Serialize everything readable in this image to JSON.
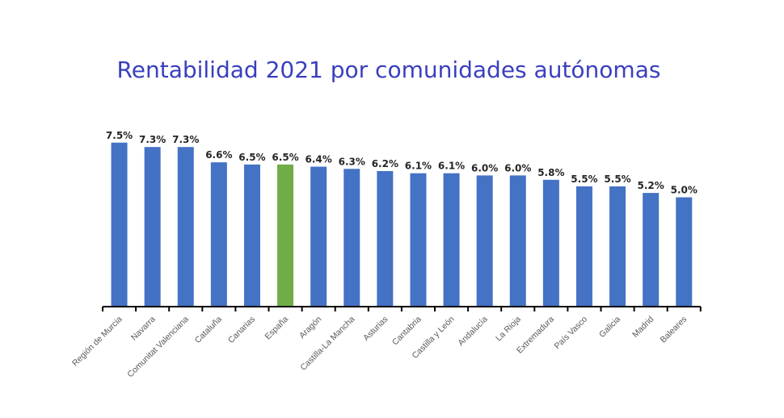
{
  "chart_data": {
    "type": "bar",
    "title": "Rentabilidad 2021 por comunidades autónomas",
    "xlabel": "",
    "ylabel": "",
    "ylim": [
      0,
      7.5
    ],
    "grid": false,
    "categories": [
      "Región de Murcia",
      "Navarra",
      "Comunitat Valenciana",
      "Cataluña",
      "Canarias",
      "España",
      "Aragón",
      "Castilla-La Mancha",
      "Asturias",
      "Cantabria",
      "Castilla y León",
      "Andalucía",
      "La Rioja",
      "Extremadura",
      "País Vasco",
      "Galicia",
      "Madrid",
      "Baleares"
    ],
    "values": [
      7.5,
      7.3,
      7.3,
      6.6,
      6.5,
      6.5,
      6.4,
      6.3,
      6.2,
      6.1,
      6.1,
      6.0,
      6.0,
      5.8,
      5.5,
      5.5,
      5.2,
      5.0
    ],
    "data_labels": [
      "7.5%",
      "7.3%",
      "7.3%",
      "6.6%",
      "6.5%",
      "6.5%",
      "6.4%",
      "6.3%",
      "6.2%",
      "6.1%",
      "6.1%",
      "6.0%",
      "6.0%",
      "5.8%",
      "5.5%",
      "5.5%",
      "5.2%",
      "5.0%"
    ],
    "colors": {
      "default": "#4472c4",
      "highlight": "#70ad47",
      "title": "#3a3fbf"
    },
    "highlight_category": "España"
  }
}
